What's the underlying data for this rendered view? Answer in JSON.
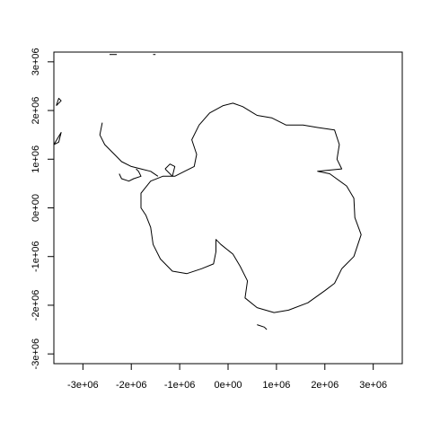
{
  "plot": {
    "xlim": [
      -3600000,
      3600000
    ],
    "ylim": [
      -3200000,
      3200000
    ],
    "x_ticks": [
      {
        "value": -3000000,
        "label": "-3e+06"
      },
      {
        "value": -2000000,
        "label": "-2e+06"
      },
      {
        "value": -1000000,
        "label": "-1e+06"
      },
      {
        "value": 0,
        "label": "0e+00"
      },
      {
        "value": 1000000,
        "label": "1e+06"
      },
      {
        "value": 2000000,
        "label": "2e+06"
      },
      {
        "value": 3000000,
        "label": "3e+06"
      }
    ],
    "y_ticks": [
      {
        "value": -3000000,
        "label": "-3e+06"
      },
      {
        "value": -2000000,
        "label": "-2e+06"
      },
      {
        "value": -1000000,
        "label": "-1e+06"
      },
      {
        "value": 0,
        "label": "0e+00"
      },
      {
        "value": 1000000,
        "label": "1e+06"
      },
      {
        "value": 2000000,
        "label": "2e+06"
      },
      {
        "value": 3000000,
        "label": "3e+06"
      }
    ],
    "coastline": {
      "mainland": [
        [
          -600000,
          1700000
        ],
        [
          -380000,
          1950000
        ],
        [
          -100000,
          2100000
        ],
        [
          100000,
          2150000
        ],
        [
          300000,
          2080000
        ],
        [
          600000,
          1900000
        ],
        [
          900000,
          1850000
        ],
        [
          1200000,
          1700000
        ],
        [
          1550000,
          1700000
        ],
        [
          1850000,
          1650000
        ],
        [
          2200000,
          1600000
        ],
        [
          2300000,
          1300000
        ],
        [
          2250000,
          1000000
        ],
        [
          2350000,
          800000
        ],
        [
          1850000,
          750000
        ],
        [
          2100000,
          700000
        ],
        [
          2450000,
          450000
        ],
        [
          2600000,
          200000
        ],
        [
          2620000,
          -200000
        ],
        [
          2750000,
          -550000
        ],
        [
          2600000,
          -1000000
        ],
        [
          2350000,
          -1250000
        ],
        [
          2200000,
          -1550000
        ],
        [
          2000000,
          -1700000
        ],
        [
          1650000,
          -1950000
        ],
        [
          1250000,
          -2100000
        ],
        [
          950000,
          -2150000
        ],
        [
          600000,
          -2050000
        ],
        [
          350000,
          -1850000
        ],
        [
          400000,
          -1500000
        ],
        [
          250000,
          -1200000
        ],
        [
          100000,
          -950000
        ],
        [
          -150000,
          -750000
        ],
        [
          -250000,
          -650000
        ],
        [
          -250000,
          -900000
        ],
        [
          -300000,
          -1150000
        ],
        [
          -550000,
          -1250000
        ],
        [
          -850000,
          -1350000
        ],
        [
          -1150000,
          -1300000
        ],
        [
          -1400000,
          -1050000
        ],
        [
          -1550000,
          -750000
        ],
        [
          -1600000,
          -400000
        ],
        [
          -1700000,
          -150000
        ],
        [
          -1800000,
          0
        ],
        [
          -1800000,
          300000
        ],
        [
          -1600000,
          550000
        ],
        [
          -1350000,
          650000
        ],
        [
          -1100000,
          650000
        ],
        [
          -900000,
          750000
        ],
        [
          -700000,
          850000
        ],
        [
          -650000,
          1100000
        ],
        [
          -750000,
          1400000
        ],
        [
          -600000,
          1700000
        ]
      ],
      "peninsula": [
        [
          -1450000,
          650000
        ],
        [
          -1600000,
          750000
        ],
        [
          -1800000,
          800000
        ],
        [
          -2000000,
          850000
        ],
        [
          -2200000,
          950000
        ],
        [
          -2350000,
          1100000
        ],
        [
          -2550000,
          1300000
        ],
        [
          -2650000,
          1500000
        ],
        [
          -2600000,
          1750000
        ]
      ],
      "ross_ice_shelf": [
        [
          -1900000,
          800000
        ],
        [
          -1850000,
          750000
        ],
        [
          -1800000,
          650000
        ],
        [
          -1950000,
          600000
        ],
        [
          -2050000,
          550000
        ],
        [
          -2200000,
          600000
        ],
        [
          -2250000,
          700000
        ]
      ],
      "islands": [
        [
          [
            -3550000,
            2100000
          ],
          [
            -3500000,
            2250000
          ],
          [
            -3450000,
            2200000
          ],
          [
            -3550000,
            2100000
          ]
        ],
        [
          [
            -3600000,
            1300000
          ],
          [
            -3450000,
            1550000
          ],
          [
            -3500000,
            1350000
          ],
          [
            -3600000,
            1300000
          ]
        ],
        [
          [
            -2450000,
            3150000
          ],
          [
            -2300000,
            3150000
          ]
        ],
        [
          [
            -1550000,
            3150000
          ],
          [
            -1500000,
            3150000
          ]
        ],
        [
          [
            600000,
            -2400000
          ],
          [
            750000,
            -2450000
          ],
          [
            800000,
            -2500000
          ]
        ],
        [
          [
            -1300000,
            800000
          ],
          [
            -1200000,
            900000
          ],
          [
            -1100000,
            850000
          ],
          [
            -1150000,
            650000
          ],
          [
            -1300000,
            800000
          ]
        ]
      ]
    }
  }
}
